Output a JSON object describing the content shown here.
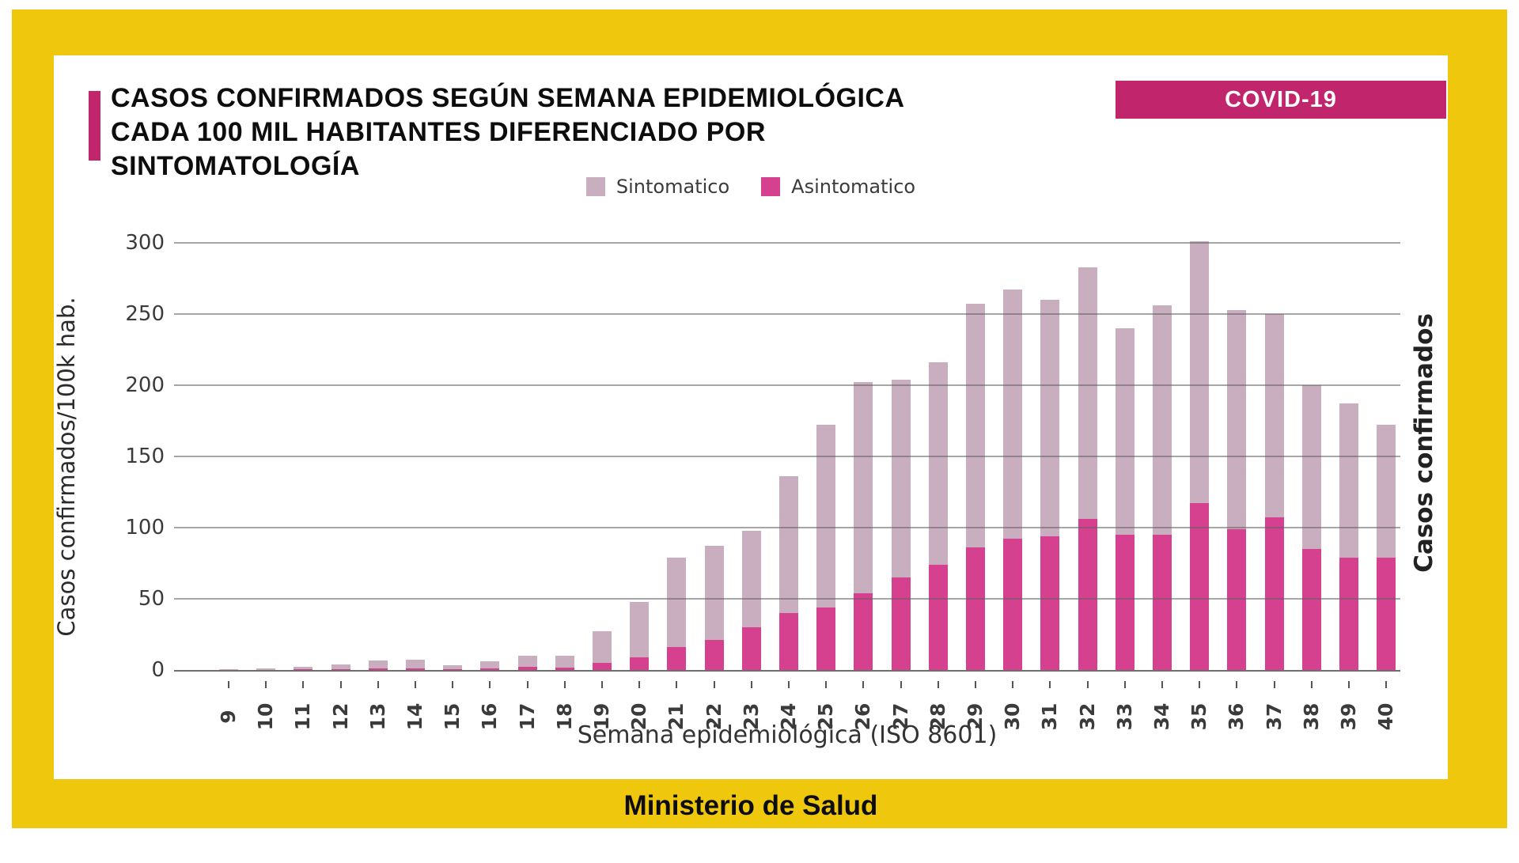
{
  "frame": {
    "color": "#EFC80D",
    "footer_text": "Ministerio de Salud"
  },
  "header": {
    "title_lines": [
      "CASOS CONFIRMADOS SEGÚN SEMANA EPIDEMIOLÓGICA",
      "CADA 100 MIL HABITANTES DIFERENCIADO POR",
      "SINTOMATOLOGÍA"
    ],
    "badge": "COVID-19",
    "accent_color": "#C1256B"
  },
  "legend": [
    {
      "label": "Sintomatico",
      "color": "#C9AEC0"
    },
    {
      "label": "Asintomatico",
      "color": "#D6418F"
    }
  ],
  "chart_data": {
    "type": "bar",
    "stacked": true,
    "title": "Casos confirmados según semana epidemiológica cada 100 mil habitantes diferenciado por sintomatología",
    "xlabel": "Semana epidemiológica (ISO 8601)",
    "ylabel_left": "Casos confirmados/100k hab.",
    "ylabel_right": "Casos confirmados",
    "ylim": [
      0,
      300
    ],
    "yticks": [
      0,
      50,
      100,
      150,
      200,
      250,
      300
    ],
    "grid": true,
    "legend_position": "top-center",
    "categories": [
      9,
      10,
      11,
      12,
      13,
      14,
      15,
      16,
      17,
      18,
      19,
      20,
      21,
      22,
      23,
      24,
      25,
      26,
      27,
      28,
      29,
      30,
      31,
      32,
      33,
      34,
      35,
      36,
      37,
      38,
      39,
      40
    ],
    "series": [
      {
        "name": "Asintomatico",
        "color": "#D6418F",
        "stack_order": "bottom",
        "values": [
          0,
          0.2,
          0.3,
          0.5,
          1,
          1,
          0.5,
          1,
          2.5,
          1.5,
          5,
          9,
          16,
          21,
          30,
          40,
          44,
          54,
          65,
          74,
          86,
          92,
          94,
          106,
          95,
          95,
          117,
          99,
          107,
          85,
          79,
          79
        ]
      },
      {
        "name": "Sintomatico",
        "color": "#C9AEC0",
        "stack_order": "top",
        "values": [
          0.3,
          0.8,
          1.7,
          3.5,
          5.5,
          6,
          3,
          5,
          7.5,
          8.5,
          22,
          39,
          63,
          66,
          68,
          96,
          128,
          148,
          139,
          142,
          171,
          175,
          166,
          177,
          145,
          161,
          184,
          154,
          143,
          115,
          108,
          93
        ]
      }
    ],
    "totals": [
      0.3,
      1,
      2,
      4,
      6.5,
      7,
      3.5,
      6,
      10,
      10,
      27,
      48,
      79,
      87,
      98,
      136,
      172,
      202,
      204,
      216,
      257,
      267,
      260,
      283,
      240,
      256,
      301,
      253,
      250,
      200,
      187,
      172
    ]
  }
}
